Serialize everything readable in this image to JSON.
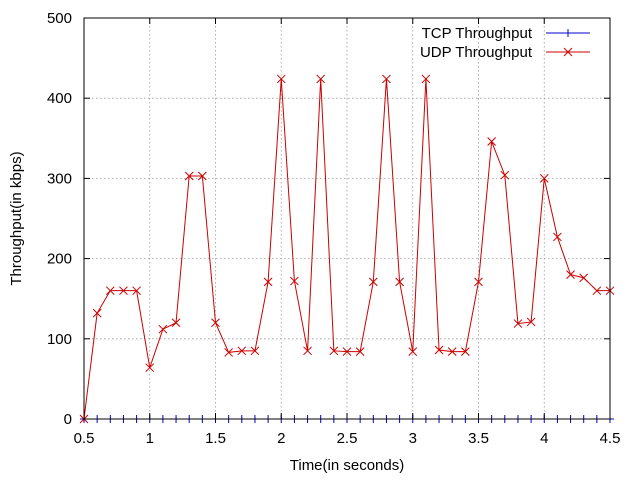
{
  "chart_data": {
    "type": "line",
    "xlabel": "Time(in seconds)",
    "ylabel": "Throughput(in kbps)",
    "xlim": [
      0.5,
      4.5
    ],
    "ylim": [
      0,
      500
    ],
    "x_ticks": [
      "0.5",
      "1",
      "1.5",
      "2",
      "2.5",
      "3",
      "3.5",
      "4",
      "4.5"
    ],
    "y_ticks": [
      "0",
      "100",
      "200",
      "300",
      "400",
      "500"
    ],
    "grid": true,
    "legend_position": "top-right",
    "x": [
      0.5,
      0.6,
      0.7,
      0.8,
      0.9,
      1.0,
      1.1,
      1.2,
      1.3,
      1.4,
      1.5,
      1.6,
      1.7,
      1.8,
      1.9,
      2.0,
      2.1,
      2.2,
      2.3,
      2.4,
      2.5,
      2.6,
      2.7,
      2.8,
      2.9,
      3.0,
      3.1,
      3.2,
      3.3,
      3.4,
      3.5,
      3.6,
      3.7,
      3.8,
      3.9,
      4.0,
      4.1,
      4.2,
      4.3,
      4.4,
      4.5
    ],
    "series": [
      {
        "name": "TCP Throughput",
        "color": "#0000cc",
        "marker": "plus",
        "values": [
          0,
          0,
          0,
          0,
          0,
          0,
          0,
          0,
          0,
          0,
          0,
          0,
          0,
          0,
          0,
          0,
          0,
          0,
          0,
          0,
          0,
          0,
          0,
          0,
          0,
          0,
          0,
          0,
          0,
          0,
          0,
          0,
          0,
          0,
          0,
          0,
          0,
          0,
          0,
          0,
          0
        ]
      },
      {
        "name": "UDP Throughput",
        "color": "#cc0000",
        "marker": "cross",
        "values": [
          0,
          132,
          160,
          160,
          160,
          64,
          112,
          120,
          303,
          303,
          120,
          83,
          85,
          85,
          171,
          424,
          172,
          85,
          424,
          85,
          84,
          84,
          171,
          424,
          171,
          84,
          424,
          86,
          84,
          84,
          171,
          346,
          304,
          119,
          121,
          300,
          227,
          180,
          176,
          160,
          160
        ]
      }
    ]
  }
}
